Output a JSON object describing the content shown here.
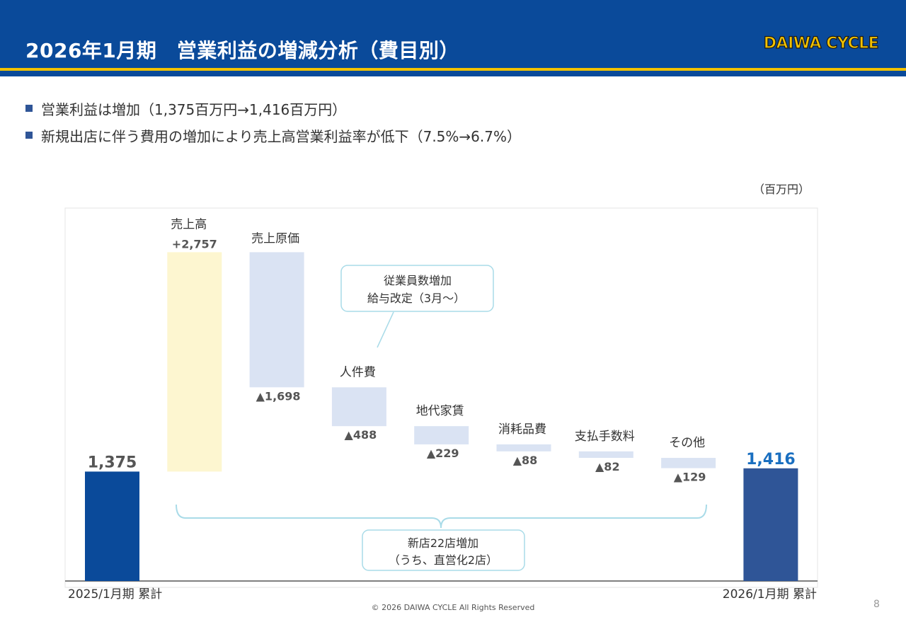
{
  "header": {
    "title": "2026年1月期　営業利益の増減分析（費目別）",
    "logo_text": "DAIWA CYCLE"
  },
  "bullets": [
    "営業利益は増加（1,375百万円→1,416百万円）",
    "新規出店に伴う費用の増加により売上高営業利益率が低下（7.5%→6.7%）"
  ],
  "unit_label": "（百万円）",
  "chart_data": {
    "type": "bar",
    "subtype": "waterfall",
    "categories": [
      "2025/1月期 累計",
      "売上高",
      "売上原価",
      "人件費",
      "地代家賃",
      "消耗品費",
      "支払手数料",
      "その他",
      "2026/1月期 累計"
    ],
    "values": [
      1375,
      2757,
      -1698,
      -488,
      -229,
      -88,
      -82,
      -129,
      1416
    ],
    "kinds": [
      "total",
      "delta",
      "delta",
      "delta",
      "delta",
      "delta",
      "delta",
      "delta",
      "total"
    ],
    "value_labels": [
      "1,375",
      "+2,757",
      "▲1,698",
      "▲488",
      "▲229",
      "▲88",
      "▲82",
      "▲129",
      "1,416"
    ],
    "ylim": [
      0,
      4200
    ],
    "grid": false,
    "annotations": {
      "callout_line1": "従業員数増加",
      "callout_line2": "給与改定（3月〜）",
      "brace_line1": "新店22店増加",
      "brace_line2": "（うち、直営化2店）"
    },
    "colors": {
      "total_start": "#0a4a9a",
      "total_end": "#2f5597",
      "increase": "#fdf6d0",
      "decrease": "#dae3f3",
      "end_label": "#1a6fc0"
    }
  },
  "footer": "© 2026 DAIWA CYCLE All Rights Reserved",
  "page_number": "8"
}
